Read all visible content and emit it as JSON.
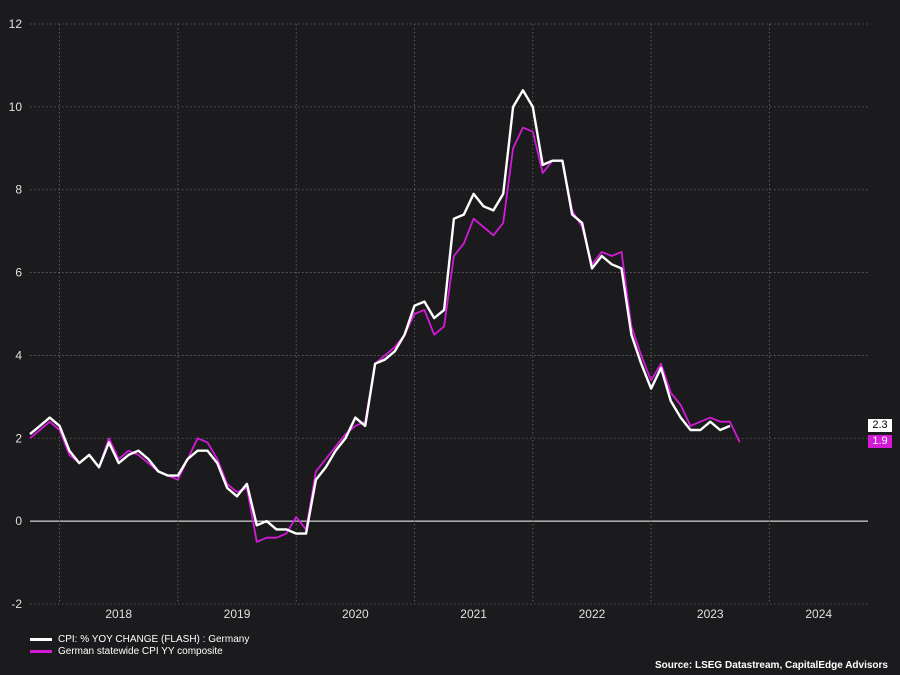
{
  "chart_data": {
    "type": "line",
    "x_start": "2017-10",
    "x_end": "2024-11",
    "ylim": [
      -2,
      12
    ],
    "yticks": [
      -2,
      0,
      2,
      4,
      6,
      8,
      10,
      12
    ],
    "year_labels": [
      "2018",
      "2019",
      "2020",
      "2021",
      "2022",
      "2023",
      "2024"
    ],
    "grid": true,
    "legend_position": "bottom-left",
    "series": [
      {
        "name": "CPI: % YOY CHANGE (FLASH) : Germany",
        "color": "#ffffff",
        "start": "2017-10",
        "values": [
          2.1,
          2.3,
          2.5,
          2.3,
          1.7,
          1.4,
          1.6,
          1.3,
          1.9,
          1.4,
          1.6,
          1.7,
          1.5,
          1.2,
          1.1,
          1.1,
          1.5,
          1.7,
          1.7,
          1.4,
          0.8,
          0.6,
          0.9,
          -0.1,
          0.0,
          -0.2,
          -0.2,
          -0.3,
          -0.3,
          1.0,
          1.3,
          1.7,
          2.0,
          2.5,
          2.3,
          3.8,
          3.9,
          4.1,
          4.5,
          5.2,
          5.3,
          4.9,
          5.1,
          7.3,
          7.4,
          7.9,
          7.6,
          7.5,
          7.9,
          10.0,
          10.4,
          10.0,
          8.6,
          8.7,
          8.7,
          7.4,
          7.2,
          6.1,
          6.4,
          6.2,
          6.1,
          4.5,
          3.8,
          3.2,
          3.7,
          2.9,
          2.5,
          2.2,
          2.2,
          2.4,
          2.2,
          2.3
        ],
        "end_label": "2.3"
      },
      {
        "name": "German statewide CPI YY composite",
        "color": "#d21ad8",
        "start": "2017-10",
        "values": [
          2.0,
          2.2,
          2.4,
          2.2,
          1.6,
          1.4,
          1.6,
          1.3,
          2.0,
          1.5,
          1.7,
          1.6,
          1.4,
          1.2,
          1.1,
          1.0,
          1.5,
          2.0,
          1.9,
          1.5,
          0.9,
          0.7,
          0.8,
          -0.5,
          -0.4,
          -0.4,
          -0.3,
          0.1,
          -0.2,
          1.2,
          1.5,
          1.8,
          2.1,
          2.3,
          2.4,
          3.8,
          4.0,
          4.2,
          4.5,
          5.0,
          5.1,
          4.5,
          4.7,
          6.4,
          6.7,
          7.3,
          7.1,
          6.9,
          7.2,
          9.0,
          9.5,
          9.4,
          8.4,
          8.7,
          8.7,
          7.5,
          7.1,
          6.2,
          6.5,
          6.4,
          6.5,
          4.7,
          4.0,
          3.4,
          3.8,
          3.1,
          2.8,
          2.3,
          2.4,
          2.5,
          2.4,
          2.4,
          1.9
        ],
        "end_label": "1.9"
      }
    ]
  },
  "source": "Source: LSEG Datastream, CapitalEdge Advisors"
}
